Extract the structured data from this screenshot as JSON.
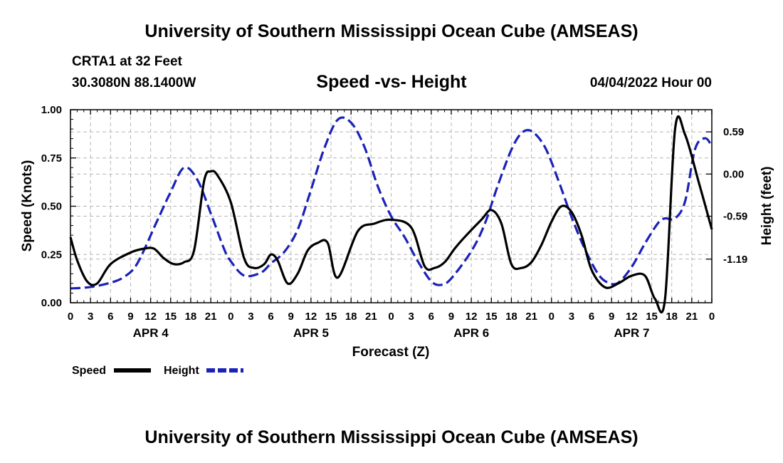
{
  "header": {
    "title": "University of Southern Mississippi Ocean Cube (AMSEAS)",
    "station": "CRTA1 at 32 Feet",
    "coordinates": "30.3080N  88.1400W",
    "subtitle": "Speed -vs- Height",
    "datetime": "04/04/2022 Hour 00"
  },
  "footer": {
    "title": "University of Southern Mississippi Ocean Cube (AMSEAS)"
  },
  "chart_data": {
    "type": "line",
    "title": "Speed -vs- Height",
    "xlabel": "Forecast (Z)",
    "ylabel": "Speed (Knots)",
    "y2label": "Height (feet)",
    "xlim": [
      0,
      96
    ],
    "ylim": [
      0,
      1
    ],
    "y2lim": [
      -1.8,
      0.9
    ],
    "grid": true,
    "x_tick_labels": [
      "0",
      "3",
      "6",
      "9",
      "12",
      "15",
      "18",
      "21",
      "0",
      "3",
      "6",
      "9",
      "12",
      "15",
      "18",
      "21",
      "0",
      "3",
      "6",
      "9",
      "12",
      "15",
      "18",
      "21",
      "0",
      "3",
      "6",
      "9",
      "12",
      "15",
      "18",
      "21",
      "0"
    ],
    "day_labels": [
      {
        "label": "APR 4",
        "hour": 12
      },
      {
        "label": "APR 5",
        "hour": 36
      },
      {
        "label": "APR 6",
        "hour": 60
      },
      {
        "label": "APR 7",
        "hour": 84
      }
    ],
    "y_tick_labels": [
      "0.00",
      "0.25",
      "0.50",
      "0.75",
      "1.00"
    ],
    "y_ticks": [
      0,
      0.25,
      0.5,
      0.75,
      1.0
    ],
    "y2_tick_labels": [
      "-1.19",
      "-0.59",
      "0.00",
      "0.59"
    ],
    "y2_ticks": [
      -1.19,
      -0.59,
      0.0,
      0.59
    ],
    "series": [
      {
        "name": "Speed",
        "axis": "left",
        "color": "#000000",
        "dash": "solid",
        "x": [
          0,
          1,
          2.5,
          4,
          6,
          9,
          11,
          12.5,
          14,
          15.5,
          17,
          18.5,
          20,
          21,
          22,
          24,
          26,
          27.5,
          29,
          30,
          31,
          32.5,
          34,
          35.5,
          37,
          38.5,
          40,
          43,
          45.5,
          48,
          51,
          53,
          54.5,
          56,
          57.5,
          59,
          61.5,
          63,
          64.5,
          66,
          67.5,
          69,
          70.5,
          72,
          73.5,
          75,
          76.5,
          78,
          80,
          82,
          84,
          86,
          87.5,
          89,
          90.5,
          92,
          94,
          96
        ],
        "y": [
          0.34,
          0.22,
          0.11,
          0.1,
          0.2,
          0.26,
          0.28,
          0.28,
          0.23,
          0.2,
          0.21,
          0.27,
          0.63,
          0.68,
          0.66,
          0.52,
          0.23,
          0.18,
          0.2,
          0.25,
          0.22,
          0.1,
          0.15,
          0.27,
          0.31,
          0.31,
          0.13,
          0.37,
          0.41,
          0.43,
          0.39,
          0.19,
          0.18,
          0.21,
          0.28,
          0.34,
          0.43,
          0.48,
          0.41,
          0.2,
          0.18,
          0.21,
          0.3,
          0.42,
          0.5,
          0.47,
          0.35,
          0.17,
          0.08,
          0.1,
          0.14,
          0.14,
          0.02,
          0.02,
          0.9,
          0.87,
          0.63,
          0.38
        ]
      },
      {
        "name": "Height",
        "axis": "right",
        "color": "#1a22b8",
        "dash": "dashed",
        "x": [
          0,
          3,
          6,
          8,
          10,
          13,
          15,
          17,
          19,
          21,
          23,
          24,
          26,
          28.5,
          30,
          32,
          34,
          36,
          38,
          40,
          42,
          44,
          46,
          48,
          50,
          52,
          54,
          55.5,
          57,
          60,
          62,
          64,
          66,
          67.5,
          69,
          71,
          73,
          75,
          77,
          79,
          80.5,
          82,
          84,
          86,
          88,
          89,
          90.5,
          92,
          93.5,
          95,
          96
        ],
        "y": [
          -1.6,
          -1.58,
          -1.52,
          -1.44,
          -1.25,
          -0.65,
          -0.25,
          0.09,
          -0.08,
          -0.55,
          -1.05,
          -1.22,
          -1.42,
          -1.38,
          -1.25,
          -1.09,
          -0.78,
          -0.22,
          0.36,
          0.76,
          0.72,
          0.38,
          -0.17,
          -0.59,
          -0.88,
          -1.22,
          -1.5,
          -1.55,
          -1.46,
          -1.08,
          -0.7,
          -0.15,
          0.34,
          0.57,
          0.6,
          0.38,
          -0.08,
          -0.6,
          -1.05,
          -1.4,
          -1.52,
          -1.52,
          -1.3,
          -0.97,
          -0.68,
          -0.62,
          -0.62,
          -0.38,
          0.35,
          0.5,
          0.39
        ]
      }
    ],
    "legend": [
      {
        "label": "Speed",
        "color": "#000000",
        "dash": "solid"
      },
      {
        "label": "Height",
        "color": "#1a22b8",
        "dash": "dashed"
      }
    ],
    "legend_position": "bottom-left"
  }
}
